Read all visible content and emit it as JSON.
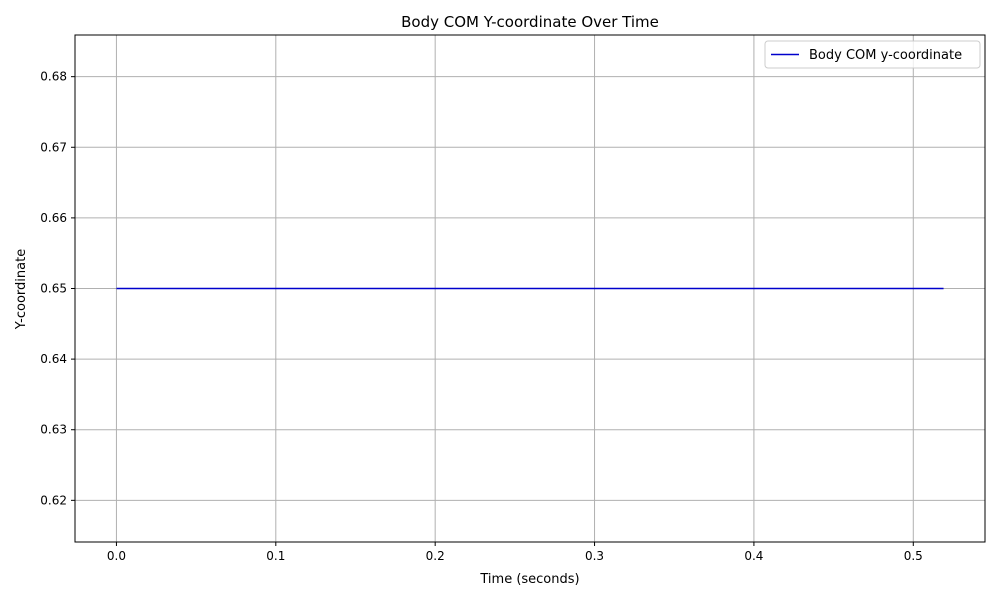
{
  "chart_data": {
    "type": "line",
    "title": "Body COM Y-coordinate Over Time",
    "xlabel": "Time (seconds)",
    "ylabel": "Y-coordinate",
    "xlim": [
      -0.026,
      0.545
    ],
    "ylim": [
      0.6141,
      0.6859
    ],
    "xticks": [
      0.0,
      0.1,
      0.2,
      0.3,
      0.4,
      0.5
    ],
    "xtick_labels": [
      "0.0",
      "0.1",
      "0.2",
      "0.3",
      "0.4",
      "0.5"
    ],
    "yticks": [
      0.62,
      0.63,
      0.64,
      0.65,
      0.66,
      0.67,
      0.68
    ],
    "ytick_labels": [
      "0.62",
      "0.63",
      "0.64",
      "0.65",
      "0.66",
      "0.67",
      "0.68"
    ],
    "grid": true,
    "legend_position": "top-right",
    "series": [
      {
        "name": "Body COM y-coordinate",
        "color": "#0000cc",
        "x": [
          0.0,
          0.1,
          0.2,
          0.3,
          0.4,
          0.5,
          0.519
        ],
        "y": [
          0.65,
          0.65,
          0.65,
          0.65,
          0.65,
          0.65,
          0.65
        ]
      }
    ]
  }
}
